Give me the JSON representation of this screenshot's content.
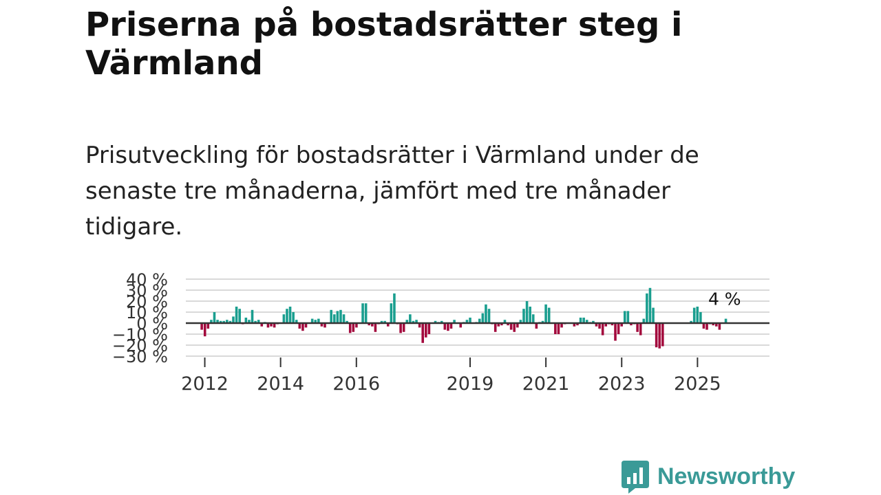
{
  "header": {
    "title": "Priserna på bostadsrätter steg i Värmland",
    "subtitle": "Prisutveckling för bostadsrätter i Värmland under de senaste tre månaderna, jämfört med tre månader tidigare."
  },
  "brand": {
    "name": "Newsworthy",
    "color": "#3a9a97",
    "icon": "newsworthy-logo-icon"
  },
  "colors": {
    "positive": "#1a9e8f",
    "negative": "#a3093d",
    "zero_line": "#333333",
    "grid": "#d9d9d9"
  },
  "chart_data": {
    "type": "bar",
    "title": "",
    "xlabel": "",
    "ylabel": "",
    "x_start": 2011.92,
    "x_step": 0.0833,
    "xlim": [
      2011.5,
      2026.9
    ],
    "ylim": [
      -31,
      41
    ],
    "y_ticks": [
      {
        "value": 40,
        "label": "40 %"
      },
      {
        "value": 30,
        "label": "30 %"
      },
      {
        "value": 20,
        "label": "20 %"
      },
      {
        "value": 10,
        "label": "10 %"
      },
      {
        "value": 0,
        "label": "0 %"
      },
      {
        "value": -10,
        "label": "−10 %"
      },
      {
        "value": -20,
        "label": "−20 %"
      },
      {
        "value": -30,
        "label": "−30 %"
      }
    ],
    "x_ticks": [
      {
        "value": 2012,
        "label": "2012"
      },
      {
        "value": 2014,
        "label": "2014"
      },
      {
        "value": 2016,
        "label": "2016"
      },
      {
        "value": 2019,
        "label": "2019"
      },
      {
        "value": 2021,
        "label": "2021"
      },
      {
        "value": 2023,
        "label": "2023"
      },
      {
        "value": 2025,
        "label": "2025"
      }
    ],
    "values": [
      -6,
      -12,
      -5,
      3,
      10,
      3,
      2,
      2,
      3,
      2,
      6,
      15,
      13,
      -1,
      5,
      3,
      12,
      2,
      3,
      -3,
      1,
      -4,
      -3,
      -4,
      -1,
      0,
      8,
      13,
      15,
      10,
      3,
      -5,
      -7,
      -4,
      0,
      4,
      3,
      4,
      -3,
      -4,
      0,
      12,
      8,
      11,
      12,
      8,
      2,
      -9,
      -8,
      -4,
      0,
      18,
      18,
      -2,
      -3,
      -8,
      -1,
      2,
      2,
      -3,
      18,
      27,
      -1,
      -9,
      -8,
      3,
      8,
      2,
      3,
      -4,
      -18,
      -13,
      -10,
      0,
      2,
      1,
      2,
      -6,
      -7,
      -5,
      3,
      0,
      -4,
      1,
      3,
      5,
      0,
      1,
      4,
      9,
      17,
      13,
      -1,
      -8,
      -3,
      -2,
      3,
      -2,
      -6,
      -8,
      -4,
      3,
      13,
      20,
      15,
      8,
      -5,
      1,
      2,
      17,
      14,
      0,
      -10,
      -10,
      -4,
      -1,
      0,
      0,
      -3,
      -2,
      5,
      5,
      3,
      1,
      2,
      -3,
      -5,
      -11,
      -3,
      -1,
      -2,
      -16,
      -10,
      -3,
      11,
      11,
      -2,
      -1,
      -8,
      -11,
      4,
      27,
      32,
      14,
      -22,
      -23,
      -21,
      0,
      0,
      0,
      0,
      0,
      0,
      0,
      0,
      2,
      14,
      15,
      10,
      -5,
      -6,
      -1,
      -2,
      -3,
      -6,
      0,
      4
    ],
    "annotation": {
      "label": "4 %",
      "value": 4
    }
  }
}
